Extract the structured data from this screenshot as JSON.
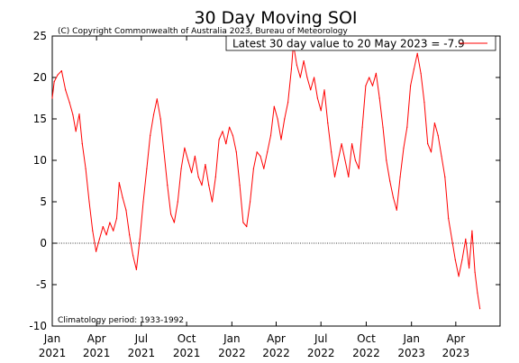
{
  "chart_data": {
    "type": "line",
    "title": "30 Day Moving SOI",
    "copyright": "(C) Copyright Commonwealth of Australia 2023, Bureau of Meteorology",
    "climatology_note": "Climatology period: 1933-1992",
    "legend": {
      "label": "Latest 30 day value to 20 May 2023 = -7.9",
      "color": "#ff0000",
      "position": "top-right"
    },
    "xlabel": "",
    "ylabel": "",
    "ylim": [
      -10,
      25
    ],
    "y_ticks": [
      "-10",
      "-5",
      "0",
      "5",
      "10",
      "15",
      "20",
      "25"
    ],
    "x_ticks": [
      {
        "month": "Jan",
        "year": "2021"
      },
      {
        "month": "Apr",
        "year": "2021"
      },
      {
        "month": "Jul",
        "year": "2021"
      },
      {
        "month": "Oct",
        "year": "2021"
      },
      {
        "month": "Jan",
        "year": "2022"
      },
      {
        "month": "Apr",
        "year": "2022"
      },
      {
        "month": "Jul",
        "year": "2022"
      },
      {
        "month": "Oct",
        "year": "2022"
      },
      {
        "month": "Jan",
        "year": "2023"
      },
      {
        "month": "Apr",
        "year": "2023"
      }
    ],
    "x_range": [
      "2021-01-01",
      "2023-06-30"
    ],
    "zero_line": true,
    "series": [
      {
        "color": "#ff0000",
        "points": [
          [
            "2021-01-01",
            17.5
          ],
          [
            "2021-01-05",
            19.5
          ],
          [
            "2021-01-12",
            20.3
          ],
          [
            "2021-01-20",
            20.8
          ],
          [
            "2021-01-28",
            18.5
          ],
          [
            "2021-02-05",
            17.0
          ],
          [
            "2021-02-12",
            15.5
          ],
          [
            "2021-02-18",
            13.5
          ],
          [
            "2021-02-25",
            15.6
          ],
          [
            "2021-03-03",
            12.0
          ],
          [
            "2021-03-10",
            9.0
          ],
          [
            "2021-03-17",
            5.0
          ],
          [
            "2021-03-24",
            1.5
          ],
          [
            "2021-03-31",
            -1.0
          ],
          [
            "2021-04-07",
            0.5
          ],
          [
            "2021-04-14",
            2.0
          ],
          [
            "2021-04-21",
            1.0
          ],
          [
            "2021-04-28",
            2.5
          ],
          [
            "2021-05-05",
            1.5
          ],
          [
            "2021-05-12",
            3.0
          ],
          [
            "2021-05-17",
            7.3
          ],
          [
            "2021-05-24",
            5.5
          ],
          [
            "2021-05-31",
            4.0
          ],
          [
            "2021-06-07",
            1.0
          ],
          [
            "2021-06-14",
            -1.5
          ],
          [
            "2021-06-21",
            -3.2
          ],
          [
            "2021-06-28",
            0.5
          ],
          [
            "2021-07-05",
            5.0
          ],
          [
            "2021-07-12",
            9.0
          ],
          [
            "2021-07-19",
            13.0
          ],
          [
            "2021-07-26",
            15.5
          ],
          [
            "2021-08-02",
            17.4
          ],
          [
            "2021-08-09",
            15.0
          ],
          [
            "2021-08-16",
            11.0
          ],
          [
            "2021-08-23",
            7.0
          ],
          [
            "2021-08-30",
            3.5
          ],
          [
            "2021-09-06",
            2.5
          ],
          [
            "2021-09-13",
            5.0
          ],
          [
            "2021-09-20",
            9.0
          ],
          [
            "2021-09-27",
            11.5
          ],
          [
            "2021-10-04",
            10.0
          ],
          [
            "2021-10-11",
            8.5
          ],
          [
            "2021-10-18",
            10.5
          ],
          [
            "2021-10-25",
            8.0
          ],
          [
            "2021-11-01",
            7.0
          ],
          [
            "2021-11-08",
            9.5
          ],
          [
            "2021-11-15",
            7.0
          ],
          [
            "2021-11-22",
            5.0
          ],
          [
            "2021-11-29",
            8.0
          ],
          [
            "2021-12-06",
            12.5
          ],
          [
            "2021-12-13",
            13.5
          ],
          [
            "2021-12-20",
            12.0
          ],
          [
            "2021-12-27",
            14.0
          ],
          [
            "2022-01-03",
            13.0
          ],
          [
            "2022-01-10",
            11.0
          ],
          [
            "2022-01-17",
            7.0
          ],
          [
            "2022-01-24",
            2.5
          ],
          [
            "2022-01-31",
            2.0
          ],
          [
            "2022-02-07",
            5.0
          ],
          [
            "2022-02-14",
            9.0
          ],
          [
            "2022-02-21",
            11.0
          ],
          [
            "2022-02-28",
            10.5
          ],
          [
            "2022-03-07",
            9.0
          ],
          [
            "2022-03-14",
            11.0
          ],
          [
            "2022-03-21",
            13.0
          ],
          [
            "2022-03-28",
            16.5
          ],
          [
            "2022-04-04",
            15.0
          ],
          [
            "2022-04-11",
            12.5
          ],
          [
            "2022-04-18",
            15.0
          ],
          [
            "2022-04-25",
            17.0
          ],
          [
            "2022-05-02",
            21.0
          ],
          [
            "2022-05-06",
            24.0
          ],
          [
            "2022-05-13",
            21.5
          ],
          [
            "2022-05-20",
            20.0
          ],
          [
            "2022-05-27",
            22.0
          ],
          [
            "2022-06-03",
            20.0
          ],
          [
            "2022-06-10",
            18.5
          ],
          [
            "2022-06-17",
            20.0
          ],
          [
            "2022-06-24",
            17.5
          ],
          [
            "2022-07-01",
            16.0
          ],
          [
            "2022-07-08",
            18.5
          ],
          [
            "2022-07-15",
            14.5
          ],
          [
            "2022-07-22",
            11.0
          ],
          [
            "2022-07-29",
            8.0
          ],
          [
            "2022-08-05",
            10.0
          ],
          [
            "2022-08-12",
            12.0
          ],
          [
            "2022-08-19",
            10.0
          ],
          [
            "2022-08-26",
            8.0
          ],
          [
            "2022-09-02",
            12.0
          ],
          [
            "2022-09-09",
            10.0
          ],
          [
            "2022-09-16",
            9.0
          ],
          [
            "2022-09-23",
            14.0
          ],
          [
            "2022-09-30",
            19.0
          ],
          [
            "2022-10-07",
            20.0
          ],
          [
            "2022-10-14",
            19.0
          ],
          [
            "2022-10-21",
            20.5
          ],
          [
            "2022-10-28",
            17.5
          ],
          [
            "2022-11-04",
            14.0
          ],
          [
            "2022-11-11",
            10.0
          ],
          [
            "2022-11-18",
            7.5
          ],
          [
            "2022-11-25",
            5.5
          ],
          [
            "2022-12-02",
            4.0
          ],
          [
            "2022-12-09",
            8.0
          ],
          [
            "2022-12-16",
            11.5
          ],
          [
            "2022-12-23",
            14.0
          ],
          [
            "2022-12-30",
            19.0
          ],
          [
            "2023-01-06",
            21.0
          ],
          [
            "2023-01-13",
            22.9
          ],
          [
            "2023-01-20",
            20.5
          ],
          [
            "2023-01-27",
            17.0
          ],
          [
            "2023-02-03",
            12.0
          ],
          [
            "2023-02-10",
            11.0
          ],
          [
            "2023-02-17",
            14.5
          ],
          [
            "2023-02-24",
            13.0
          ],
          [
            "2023-03-03",
            10.5
          ],
          [
            "2023-03-10",
            8.0
          ],
          [
            "2023-03-17",
            3.0
          ],
          [
            "2023-03-24",
            0.5
          ],
          [
            "2023-03-31",
            -2.0
          ],
          [
            "2023-04-07",
            -4.0
          ],
          [
            "2023-04-14",
            -2.0
          ],
          [
            "2023-04-21",
            0.5
          ],
          [
            "2023-04-28",
            -3.0
          ],
          [
            "2023-05-04",
            1.5
          ],
          [
            "2023-05-10",
            -3.5
          ],
          [
            "2023-05-15",
            -6.0
          ],
          [
            "2023-05-20",
            -7.9
          ]
        ]
      }
    ]
  }
}
